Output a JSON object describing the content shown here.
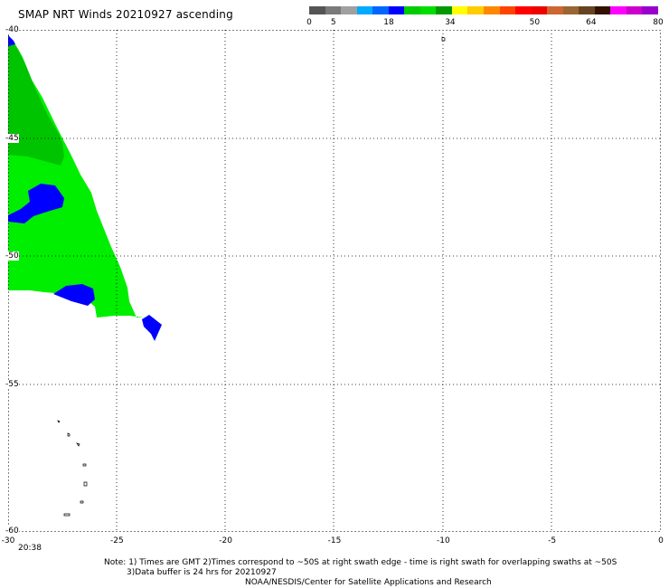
{
  "title": "SMAP NRT Winds 20210927 ascending",
  "colorbar": {
    "ticks": [
      "0",
      "5",
      "18",
      "34",
      "50",
      "64",
      "80"
    ],
    "segments": [
      {
        "color": "#555555"
      },
      {
        "color": "#7a7a7a"
      },
      {
        "color": "#a0a0a0"
      },
      {
        "color": "#00aaff"
      },
      {
        "color": "#0066ff"
      },
      {
        "color": "#0000ff"
      },
      {
        "color": "#00cc00"
      },
      {
        "color": "#00dd00"
      },
      {
        "color": "#009900"
      },
      {
        "color": "#ffff00"
      },
      {
        "color": "#ffcc00"
      },
      {
        "color": "#ff8800"
      },
      {
        "color": "#ff4400"
      },
      {
        "color": "#ff0000"
      },
      {
        "color": "#ee0000"
      },
      {
        "color": "#cc6633"
      },
      {
        "color": "#996633"
      },
      {
        "color": "#664422"
      },
      {
        "color": "#331100"
      },
      {
        "color": "#ff00ff"
      },
      {
        "color": "#cc00cc"
      },
      {
        "color": "#9900cc"
      }
    ]
  },
  "axes": {
    "x_ticks": [
      "-30",
      "-25",
      "-20",
      "-15",
      "-10",
      "-5",
      "0"
    ],
    "y_ticks": [
      "-40",
      "-45",
      "-50",
      "-55",
      "-60"
    ]
  },
  "timestamp": "20:38",
  "notes": {
    "line1": "Note: 1) Times are GMT 2)Times correspond to ~50S at right swath edge - time is right swath for overlapping swaths at ~50S",
    "line2": "3)Data buffer is 24 hrs for 20210927",
    "line3": "NOAA/NESDIS/Center for Satellite Applications and Research"
  },
  "colors": {
    "low_wind": "#0000ff",
    "mid_wind": "#00ee00",
    "mid_wind_dark": "#00c400"
  }
}
